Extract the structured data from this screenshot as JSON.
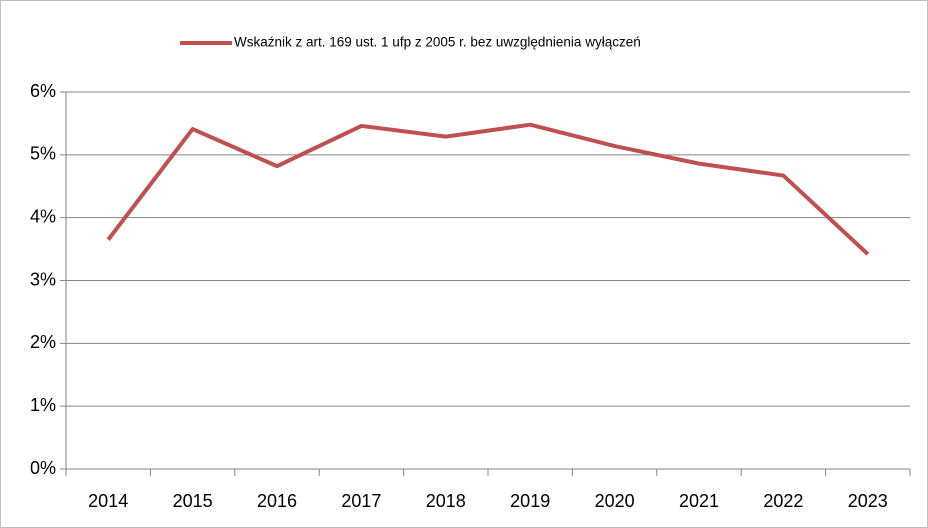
{
  "chart_data": {
    "type": "line",
    "categories": [
      "2014",
      "2015",
      "2016",
      "2017",
      "2018",
      "2019",
      "2020",
      "2021",
      "2022",
      "2023"
    ],
    "series": [
      {
        "name": "Wskaźnik z art. 169 ust. 1 ufp z 2005 r. bez uwzględnienia wyłączeń",
        "color": "#c0504d",
        "values": [
          3.65,
          5.41,
          4.82,
          5.46,
          5.29,
          5.48,
          5.14,
          4.86,
          4.67,
          3.42
        ]
      }
    ],
    "ylim": [
      0,
      6
    ],
    "yticks": [
      {
        "value": 0,
        "label": "0%"
      },
      {
        "value": 1,
        "label": "1%"
      },
      {
        "value": 2,
        "label": "2%"
      },
      {
        "value": 3,
        "label": "3%"
      },
      {
        "value": 4,
        "label": "4%"
      },
      {
        "value": 5,
        "label": "5%"
      },
      {
        "value": 6,
        "label": "6%"
      }
    ],
    "grid": true,
    "legend": "top"
  }
}
